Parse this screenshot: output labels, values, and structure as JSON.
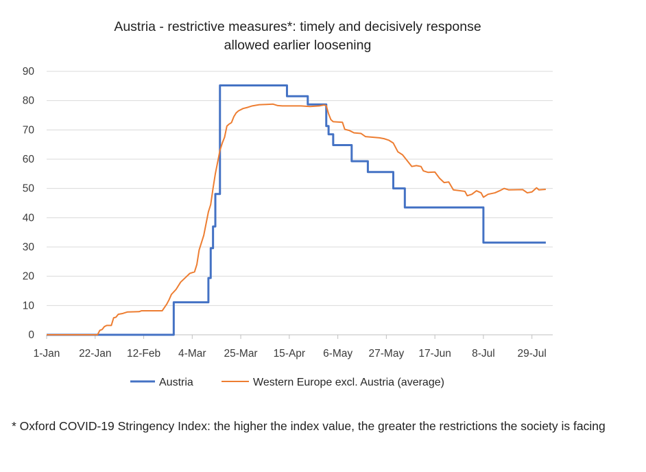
{
  "chart_data": {
    "type": "line",
    "title": [
      "Austria - restrictive measures*: timely and decisively response",
      "allowed earlier loosening"
    ],
    "xlabel": "",
    "ylabel": "",
    "ylim": [
      0,
      90
    ],
    "yticks": [
      0,
      10,
      20,
      30,
      40,
      50,
      60,
      70,
      80,
      90
    ],
    "xlim": [
      "2020-01-01",
      "2020-08-07"
    ],
    "xticks": [
      {
        "date": "2020-01-01",
        "label": "1-Jan"
      },
      {
        "date": "2020-01-22",
        "label": "22-Jan"
      },
      {
        "date": "2020-02-12",
        "label": "12-Feb"
      },
      {
        "date": "2020-03-04",
        "label": "4-Mar"
      },
      {
        "date": "2020-03-25",
        "label": "25-Mar"
      },
      {
        "date": "2020-04-15",
        "label": "15-Apr"
      },
      {
        "date": "2020-05-06",
        "label": "6-May"
      },
      {
        "date": "2020-05-27",
        "label": "27-May"
      },
      {
        "date": "2020-06-17",
        "label": "17-Jun"
      },
      {
        "date": "2020-07-08",
        "label": "8-Jul"
      },
      {
        "date": "2020-07-29",
        "label": "29-Jul"
      }
    ],
    "grid": true,
    "legend_position": "bottom",
    "series": [
      {
        "name": "Austria",
        "color": "#4472c4",
        "step": true,
        "points": [
          [
            "2020-01-01",
            0
          ],
          [
            "2020-02-24",
            0
          ],
          [
            "2020-02-25",
            11.1
          ],
          [
            "2020-03-10",
            11.1
          ],
          [
            "2020-03-11",
            19.4
          ],
          [
            "2020-03-12",
            29.6
          ],
          [
            "2020-03-13",
            37.0
          ],
          [
            "2020-03-14",
            48.1
          ],
          [
            "2020-03-16",
            85.2
          ],
          [
            "2020-04-13",
            85.2
          ],
          [
            "2020-04-14",
            81.5
          ],
          [
            "2020-04-22",
            81.5
          ],
          [
            "2020-04-23",
            78.7
          ],
          [
            "2020-04-30",
            78.7
          ],
          [
            "2020-05-01",
            71.3
          ],
          [
            "2020-05-02",
            68.5
          ],
          [
            "2020-05-04",
            64.8
          ],
          [
            "2020-05-11",
            64.8
          ],
          [
            "2020-05-12",
            59.3
          ],
          [
            "2020-05-18",
            59.3
          ],
          [
            "2020-05-19",
            55.6
          ],
          [
            "2020-05-29",
            55.6
          ],
          [
            "2020-05-30",
            50.0
          ],
          [
            "2020-06-03",
            50.0
          ],
          [
            "2020-06-04",
            43.5
          ],
          [
            "2020-07-07",
            43.5
          ],
          [
            "2020-07-08",
            31.5
          ],
          [
            "2020-08-04",
            31.5
          ]
        ]
      },
      {
        "name": "Western Europe excl. Austria (average)",
        "color": "#ed7d31",
        "step": false,
        "points": [
          [
            "2020-01-01",
            0
          ],
          [
            "2020-01-23",
            0
          ],
          [
            "2020-01-24",
            1.5
          ],
          [
            "2020-01-25",
            1.8
          ],
          [
            "2020-01-26",
            2.8
          ],
          [
            "2020-01-27",
            3.2
          ],
          [
            "2020-01-29",
            3.2
          ],
          [
            "2020-01-30",
            5.8
          ],
          [
            "2020-01-31",
            6.0
          ],
          [
            "2020-02-01",
            7.0
          ],
          [
            "2020-02-03",
            7.3
          ],
          [
            "2020-02-05",
            7.8
          ],
          [
            "2020-02-10",
            7.9
          ],
          [
            "2020-02-11",
            8.2
          ],
          [
            "2020-02-20",
            8.2
          ],
          [
            "2020-02-22",
            10.5
          ],
          [
            "2020-02-23",
            12.0
          ],
          [
            "2020-02-24",
            13.8
          ],
          [
            "2020-02-26",
            15.5
          ],
          [
            "2020-02-28",
            18.0
          ],
          [
            "2020-03-01",
            19.5
          ],
          [
            "2020-03-03",
            21.0
          ],
          [
            "2020-03-05",
            21.5
          ],
          [
            "2020-03-06",
            24.0
          ],
          [
            "2020-03-07",
            29.0
          ],
          [
            "2020-03-09",
            34.0
          ],
          [
            "2020-03-10",
            38.0
          ],
          [
            "2020-03-11",
            42.0
          ],
          [
            "2020-03-12",
            44.5
          ],
          [
            "2020-03-13",
            50.0
          ],
          [
            "2020-03-14",
            55.0
          ],
          [
            "2020-03-15",
            59.0
          ],
          [
            "2020-03-16",
            63.0
          ],
          [
            "2020-03-17",
            65.5
          ],
          [
            "2020-03-18",
            67.5
          ],
          [
            "2020-03-19",
            71.3
          ],
          [
            "2020-03-20",
            72.0
          ],
          [
            "2020-03-21",
            72.5
          ],
          [
            "2020-03-22",
            74.5
          ],
          [
            "2020-03-23",
            75.8
          ],
          [
            "2020-03-24",
            76.5
          ],
          [
            "2020-03-26",
            77.3
          ],
          [
            "2020-03-28",
            77.7
          ],
          [
            "2020-03-30",
            78.2
          ],
          [
            "2020-04-02",
            78.6
          ],
          [
            "2020-04-05",
            78.7
          ],
          [
            "2020-04-08",
            78.8
          ],
          [
            "2020-04-10",
            78.3
          ],
          [
            "2020-04-12",
            78.2
          ],
          [
            "2020-04-20",
            78.2
          ],
          [
            "2020-04-24",
            78.0
          ],
          [
            "2020-04-28",
            78.2
          ],
          [
            "2020-04-30",
            78.5
          ],
          [
            "2020-05-01",
            78.3
          ],
          [
            "2020-05-02",
            75.5
          ],
          [
            "2020-05-03",
            73.5
          ],
          [
            "2020-05-04",
            72.8
          ],
          [
            "2020-05-08",
            72.6
          ],
          [
            "2020-05-09",
            70.2
          ],
          [
            "2020-05-11",
            69.8
          ],
          [
            "2020-05-13",
            69.0
          ],
          [
            "2020-05-16",
            68.8
          ],
          [
            "2020-05-18",
            67.7
          ],
          [
            "2020-05-24",
            67.3
          ],
          [
            "2020-05-26",
            67.0
          ],
          [
            "2020-05-28",
            66.5
          ],
          [
            "2020-05-30",
            65.5
          ],
          [
            "2020-06-01",
            62.5
          ],
          [
            "2020-06-03",
            61.5
          ],
          [
            "2020-06-05",
            59.5
          ],
          [
            "2020-06-07",
            57.5
          ],
          [
            "2020-06-09",
            57.8
          ],
          [
            "2020-06-11",
            57.5
          ],
          [
            "2020-06-12",
            56.0
          ],
          [
            "2020-06-14",
            55.5
          ],
          [
            "2020-06-17",
            55.6
          ],
          [
            "2020-06-19",
            53.5
          ],
          [
            "2020-06-21",
            52.0
          ],
          [
            "2020-06-23",
            52.2
          ],
          [
            "2020-06-25",
            49.5
          ],
          [
            "2020-06-30",
            49.0
          ],
          [
            "2020-07-01",
            47.5
          ],
          [
            "2020-07-03",
            48.0
          ],
          [
            "2020-07-05",
            49.2
          ],
          [
            "2020-07-07",
            48.5
          ],
          [
            "2020-07-08",
            47.0
          ],
          [
            "2020-07-10",
            48.0
          ],
          [
            "2020-07-13",
            48.5
          ],
          [
            "2020-07-15",
            49.2
          ],
          [
            "2020-07-17",
            50.0
          ],
          [
            "2020-07-19",
            49.5
          ],
          [
            "2020-07-25",
            49.6
          ],
          [
            "2020-07-27",
            48.5
          ],
          [
            "2020-07-29",
            48.8
          ],
          [
            "2020-07-31",
            50.2
          ],
          [
            "2020-08-01",
            49.5
          ],
          [
            "2020-08-04",
            49.7
          ]
        ]
      }
    ]
  },
  "footnote": "* Oxford COVID-19 Stringency Index: the higher the index value, the greater the restrictions the society is facing"
}
